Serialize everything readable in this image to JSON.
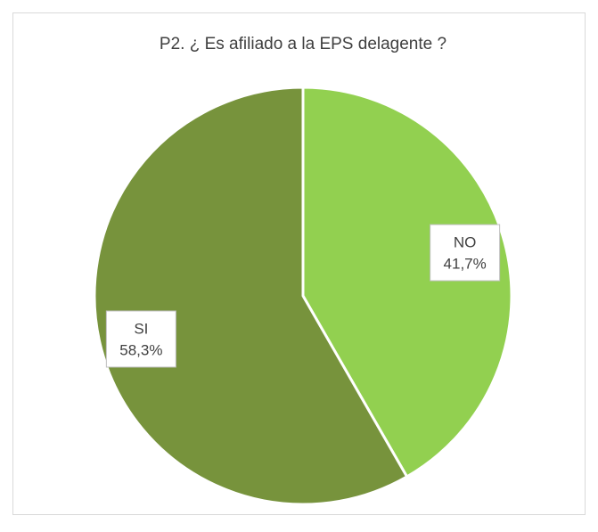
{
  "chart_data": {
    "type": "pie",
    "title": "P2. ¿ Es afiliado a la EPS delagente ?",
    "categories": [
      "NO",
      "SI"
    ],
    "values": [
      41.7,
      58.3
    ],
    "value_labels": [
      "41,7%",
      "58,3%"
    ],
    "colors": [
      "#92d050",
      "#77933c"
    ]
  }
}
